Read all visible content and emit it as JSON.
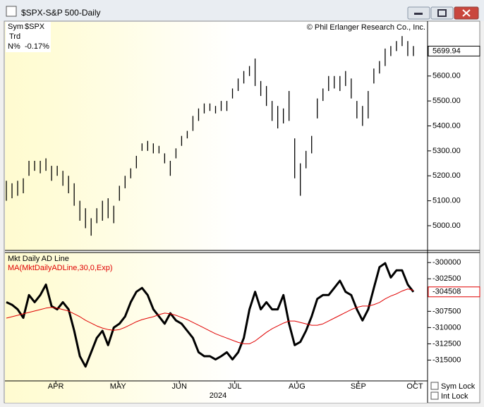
{
  "window": {
    "title": "$SPX-S&P 500-Daily",
    "sym_lock": "Sym Lock",
    "int_lock": "Int Lock"
  },
  "chart_data": [
    {
      "type": "range-bar",
      "info": {
        "sym_label": "Sym",
        "sym": "$SPX",
        "trd": "Trd",
        "n_label": "N%",
        "n_value": "-0.17%"
      },
      "copyright": "© Phil Erlanger Research Co., Inc.",
      "high": [
        5180,
        5170,
        5180,
        5190,
        5260,
        5260,
        5260,
        5270,
        5240,
        5240,
        5220,
        5200,
        5170,
        5100,
        5070,
        5030,
        5070,
        5100,
        5110,
        5080,
        5160,
        5200,
        5230,
        5280,
        5330,
        5340,
        5330,
        5320,
        5290,
        5260,
        5310,
        5360,
        5380,
        5440,
        5470,
        5490,
        5490,
        5480,
        5500,
        5500,
        5550,
        5590,
        5620,
        5640,
        5670,
        5580,
        5560,
        5500,
        5480,
        5470,
        5540,
        5350,
        5250,
        5300,
        5360,
        5510,
        5550,
        5600,
        5600,
        5600,
        5620,
        5590,
        5500,
        5480,
        5540,
        5630,
        5660,
        5710,
        5720,
        5740,
        5760,
        5740,
        5720
      ],
      "low": [
        5100,
        5110,
        5120,
        5130,
        5200,
        5220,
        5210,
        5220,
        5180,
        5200,
        5160,
        5130,
        5080,
        5020,
        4990,
        4960,
        5010,
        5020,
        5030,
        5010,
        5100,
        5150,
        5190,
        5230,
        5300,
        5300,
        5290,
        5290,
        5250,
        5200,
        5270,
        5320,
        5350,
        5380,
        5420,
        5450,
        5460,
        5450,
        5460,
        5460,
        5510,
        5540,
        5570,
        5600,
        5560,
        5520,
        5480,
        5420,
        5390,
        5410,
        5420,
        5190,
        5120,
        5230,
        5290,
        5430,
        5500,
        5540,
        5550,
        5540,
        5560,
        5510,
        5430,
        5400,
        5430,
        5570,
        5610,
        5640,
        5680,
        5700,
        5720,
        5680,
        5680
      ],
      "last_value": 5699.94,
      "ylim": [
        4901,
        5817
      ],
      "yticks": [
        {
          "value": 5000,
          "label": "5000.00"
        },
        {
          "value": 5100,
          "label": "5100.00"
        },
        {
          "value": 5200,
          "label": "5200.00"
        },
        {
          "value": 5300,
          "label": "5300.00"
        },
        {
          "value": 5400,
          "label": "5400.00"
        },
        {
          "value": 5500,
          "label": "5500.00"
        },
        {
          "value": 5600,
          "label": "5600.00"
        }
      ],
      "color": "#000000"
    },
    {
      "type": "line",
      "title": "Mkt Daily AD Line",
      "series": [
        {
          "name": "Mkt Daily AD Line",
          "color": "#000000",
          "values": [
            -306100,
            -306500,
            -307200,
            -308500,
            -305000,
            -306100,
            -305000,
            -303400,
            -306700,
            -307200,
            -306100,
            -307200,
            -310500,
            -314400,
            -316000,
            -313800,
            -311600,
            -310500,
            -312700,
            -310000,
            -309400,
            -308300,
            -306100,
            -304500,
            -303900,
            -305000,
            -307200,
            -308300,
            -309400,
            -307800,
            -308900,
            -309400,
            -310500,
            -311600,
            -313800,
            -314400,
            -314400,
            -314900,
            -314400,
            -313800,
            -314900,
            -313800,
            -311600,
            -307200,
            -304500,
            -307200,
            -306100,
            -307200,
            -307200,
            -305000,
            -309400,
            -312700,
            -312200,
            -310500,
            -308300,
            -305600,
            -305000,
            -305000,
            -303900,
            -302800,
            -304500,
            -305000,
            -307200,
            -308900,
            -307200,
            -303900,
            -300700,
            -300100,
            -302300,
            -301200,
            -301200,
            -303400,
            -304508
          ]
        },
        {
          "name": "MA(MktDailyADLine,30,0,Exp)",
          "color": "#e00000",
          "values": [
            -308550,
            -308330,
            -308110,
            -307890,
            -307670,
            -307450,
            -307230,
            -307010,
            -306900,
            -307010,
            -307230,
            -307450,
            -307890,
            -308330,
            -308880,
            -309320,
            -309750,
            -310080,
            -310300,
            -310410,
            -310300,
            -309970,
            -309540,
            -309100,
            -308770,
            -308550,
            -308330,
            -308000,
            -307780,
            -307890,
            -308110,
            -308440,
            -308770,
            -309210,
            -309640,
            -310080,
            -310520,
            -310960,
            -311290,
            -311620,
            -311950,
            -312280,
            -312500,
            -312500,
            -312060,
            -311400,
            -310740,
            -310190,
            -309750,
            -309320,
            -308990,
            -308990,
            -309210,
            -309430,
            -309640,
            -309640,
            -309430,
            -308990,
            -308550,
            -308110,
            -307670,
            -307230,
            -306900,
            -306690,
            -306690,
            -306470,
            -306140,
            -305590,
            -305150,
            -304820,
            -304380,
            -304060,
            -304270
          ]
        }
      ],
      "last_value": -304508,
      "ylim": [
        -318200,
        -298460
      ],
      "yticks": [
        -300000,
        -302500,
        -305000,
        -307500,
        -310000,
        -312500,
        -315000
      ],
      "xlim": [
        -0.25,
        74.5
      ],
      "xticks": [
        {
          "value": 8.75,
          "label": "APR"
        },
        {
          "value": 19.75,
          "label": "MAY"
        },
        {
          "value": 30.6,
          "label": "JUN"
        },
        {
          "value": 40.4,
          "label": "JUL"
        },
        {
          "value": 51.4,
          "label": "AUG"
        },
        {
          "value": 62.25,
          "label": "SEP"
        },
        {
          "value": 72.25,
          "label": "OCT"
        }
      ],
      "x_label": "2024"
    }
  ]
}
